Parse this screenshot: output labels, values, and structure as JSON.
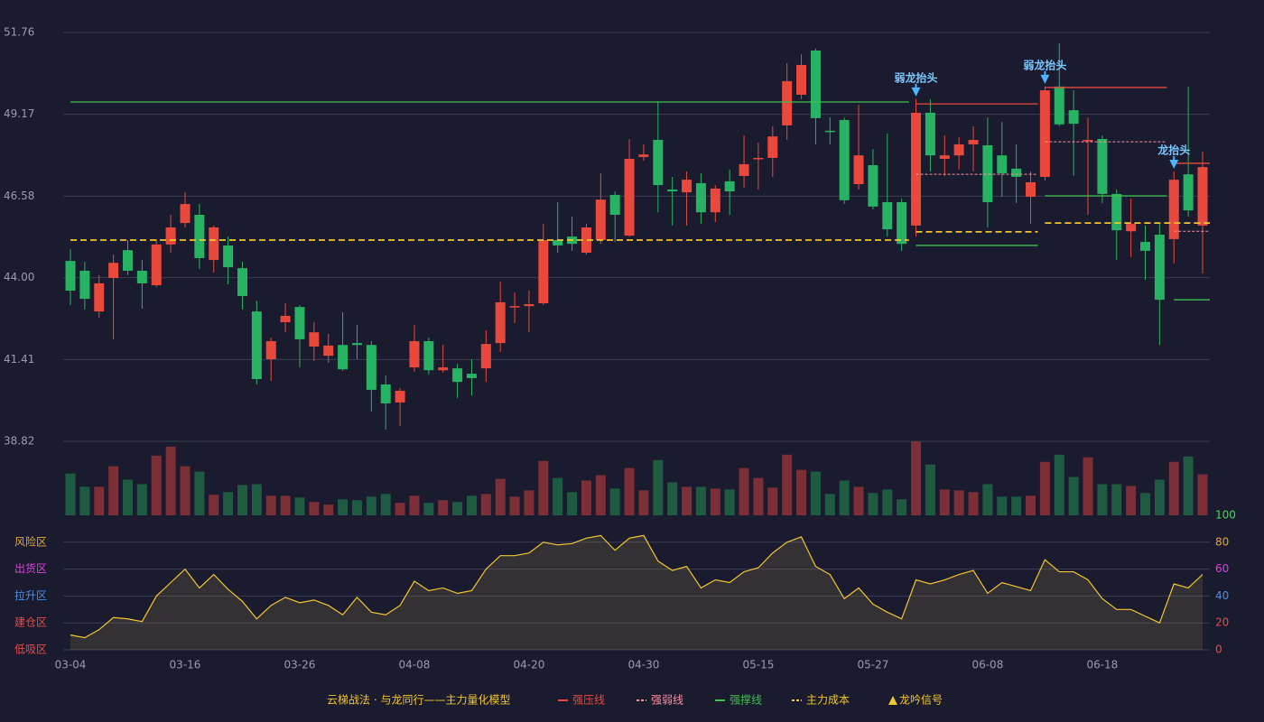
{
  "chart_data": [
    {
      "type": "candlestick",
      "open": [
        44.53,
        44.22,
        42.93,
        43.99,
        44.87,
        44.22,
        43.76,
        45.05,
        45.73,
        45.99,
        44.56,
        45.02,
        44.3,
        42.93,
        41.42,
        42.59,
        43.07,
        41.82,
        41.53,
        41.87,
        41.93,
        41.87,
        40.62,
        40.05,
        41.16,
        41.99,
        41.07,
        41.13,
        40.96,
        41.13,
        41.93,
        43.07,
        43.1,
        43.19,
        45.19,
        45.3,
        44.79,
        45.19,
        46.62,
        45.33,
        47.82,
        48.36,
        46.79,
        46.7,
        46.99,
        46.07,
        47.05,
        47.22,
        47.79,
        47.79,
        48.82,
        49.79,
        51.19,
        48.65,
        48.99,
        46.96,
        47.56,
        46.39,
        46.39,
        45.65,
        49.22,
        47.76,
        47.87,
        48.22,
        48.19,
        47.87,
        47.45,
        46.56,
        47.19,
        50.05,
        49.3,
        48.36,
        48.39,
        46.65,
        45.47,
        45.13,
        45.36,
        45.22,
        47.27,
        45.65
      ],
      "high": [
        44.9,
        44.5,
        44.08,
        44.73,
        45.19,
        44.56,
        45.22,
        45.99,
        46.7,
        46.33,
        45.65,
        45.3,
        44.5,
        43.27,
        42.1,
        43.19,
        43.13,
        42.59,
        42.22,
        42.9,
        42.5,
        41.99,
        40.9,
        40.5,
        42.5,
        42.1,
        41.87,
        41.27,
        41.42,
        42.33,
        43.87,
        43.53,
        43.59,
        45.7,
        46.39,
        45.93,
        45.7,
        47.3,
        46.73,
        48.39,
        48.22,
        49.59,
        47.19,
        47.36,
        47.3,
        46.93,
        47.42,
        48.5,
        48.27,
        48.79,
        50.79,
        51.07,
        51.25,
        49.07,
        49.07,
        49.47,
        48.07,
        48.56,
        46.5,
        49.65,
        49.65,
        48.5,
        48.45,
        48.79,
        49.07,
        48.93,
        48.22,
        47.36,
        50.05,
        51.42,
        49.93,
        49.07,
        48.5,
        46.79,
        46.5,
        45.65,
        45.7,
        47.36,
        50.05,
        47.99
      ],
      "low": [
        43.13,
        42.99,
        42.73,
        42.05,
        44.08,
        43.02,
        43.7,
        44.79,
        45.59,
        44.27,
        44.16,
        43.79,
        42.99,
        40.62,
        40.73,
        42.27,
        41.16,
        41.36,
        41.3,
        41.05,
        41.42,
        39.76,
        39.19,
        39.3,
        41.02,
        40.93,
        41.0,
        40.19,
        40.27,
        40.7,
        41.65,
        42.56,
        42.27,
        43.13,
        44.79,
        44.85,
        44.73,
        45.07,
        45.13,
        45.3,
        47.7,
        46.07,
        45.65,
        45.65,
        45.7,
        45.76,
        45.99,
        46.85,
        46.79,
        47.19,
        48.36,
        49.65,
        48.22,
        48.22,
        46.33,
        46.79,
        46.16,
        45.3,
        44.85,
        45.3,
        47.36,
        47.22,
        47.42,
        47.36,
        45.59,
        46.56,
        46.36,
        45.7,
        47.07,
        48.79,
        47.22,
        45.99,
        46.36,
        44.56,
        44.65,
        43.93,
        41.87,
        44.45,
        45.93,
        44.13
      ],
      "close": [
        43.59,
        43.33,
        43.82,
        44.47,
        44.22,
        43.82,
        45.05,
        45.59,
        46.33,
        44.62,
        45.59,
        44.33,
        43.42,
        40.79,
        41.99,
        42.79,
        42.05,
        42.27,
        41.85,
        41.1,
        41.87,
        40.45,
        40.02,
        40.42,
        41.99,
        41.07,
        41.16,
        40.7,
        40.82,
        41.9,
        43.22,
        43.1,
        43.16,
        45.19,
        45.02,
        45.07,
        45.59,
        46.47,
        45.99,
        47.76,
        47.9,
        46.93,
        46.73,
        47.1,
        46.07,
        46.82,
        46.73,
        47.59,
        47.79,
        48.47,
        50.22,
        50.73,
        49.05,
        48.62,
        46.45,
        47.87,
        46.25,
        45.53,
        45.07,
        49.22,
        47.87,
        47.87,
        48.22,
        48.36,
        46.39,
        47.3,
        47.19,
        47.02,
        49.93,
        48.85,
        48.87,
        48.36,
        46.65,
        45.5,
        45.7,
        44.85,
        43.3,
        47.1,
        46.13,
        47.5
      ],
      "up_color": "#e9493d",
      "down_color": "#27b363",
      "ylim": [
        38.82,
        51.76
      ],
      "yticks": [
        38.82,
        41.41,
        {
          "value": 44,
          "label": "44.00"
        },
        46.58,
        49.17,
        51.76
      ],
      "grid": true,
      "lines": [
        {
          "name": "强压线",
          "color": "#e9493d",
          "dash": false,
          "segments": [
            {
              "start": 59,
              "end": 67,
              "value": 49.5
            },
            {
              "start": 68,
              "end": 76,
              "value": 50.02
            },
            {
              "start": 77,
              "end": 79,
              "value": 47.62
            }
          ]
        },
        {
          "name": "强弱线",
          "color": "#ff8fa3",
          "dash": true,
          "segments": [
            {
              "start": 59,
              "end": 67,
              "value": 47.27
            },
            {
              "start": 68,
              "end": 76,
              "value": 48.3
            },
            {
              "start": 77,
              "end": 79,
              "value": 45.47
            }
          ]
        },
        {
          "name": "强撑线",
          "color": "#3fbf52",
          "dash": false,
          "segments": [
            {
              "start": 0,
              "end": 58,
              "value": 49.56
            },
            {
              "start": 59,
              "end": 67,
              "value": 45.02
            },
            {
              "start": 68,
              "end": 76,
              "value": 46.59
            },
            {
              "start": 77,
              "end": 79,
              "value": 43.3
            }
          ]
        },
        {
          "name": "主力成本",
          "color": "#f2c62e",
          "dash": true,
          "segments": [
            {
              "start": 0,
              "end": 58,
              "value": 45.19
            },
            {
              "start": 59,
              "end": 67,
              "value": 45.45
            },
            {
              "start": 68,
              "end": 79,
              "value": 45.73
            }
          ]
        }
      ],
      "signal_name": "龙吟信号",
      "signal_color": "#f2c62e",
      "signal_arrow_color": "#4fb3ff",
      "signals": [
        {
          "index": 59,
          "value": 49.65,
          "label": "弱龙抬头"
        },
        {
          "index": 68,
          "value": 50.05,
          "label": "弱龙抬头"
        },
        {
          "index": 77,
          "value": 47.36,
          "label": "龙抬头"
        }
      ]
    },
    {
      "type": "bar",
      "values": [
        47,
        32,
        32,
        55,
        40,
        35,
        67,
        77,
        55,
        49,
        23,
        26,
        34,
        35,
        22,
        22,
        20,
        15,
        12,
        18,
        17,
        21,
        24,
        14,
        22,
        14,
        17,
        15,
        22,
        24,
        41,
        21,
        28,
        61,
        42,
        26,
        39,
        45,
        30,
        53,
        28,
        62,
        37,
        32,
        32,
        30,
        29,
        53,
        42,
        31,
        68,
        51,
        49,
        24,
        39,
        32,
        25,
        29,
        18,
        83,
        57,
        29,
        28,
        26,
        35,
        21,
        21,
        22,
        60,
        68,
        43,
        65,
        35,
        35,
        33,
        25,
        40,
        60,
        66,
        46
      ],
      "up_color": "#7c2f36",
      "down_color": "#1f5b42"
    },
    {
      "type": "line",
      "name": "云梯战法 · 与龙同行——主力量化模型",
      "color": "#f2c62e",
      "categories": [
        "03-04",
        null,
        null,
        null,
        null,
        null,
        null,
        null,
        "03-16",
        null,
        null,
        null,
        null,
        null,
        null,
        null,
        "03-26",
        null,
        null,
        null,
        null,
        null,
        null,
        null,
        "04-08",
        null,
        null,
        null,
        null,
        null,
        null,
        null,
        "04-20",
        null,
        null,
        null,
        null,
        null,
        null,
        null,
        "04-30",
        null,
        null,
        null,
        null,
        null,
        null,
        null,
        "05-15",
        null,
        null,
        null,
        null,
        null,
        null,
        null,
        "05-27",
        null,
        null,
        null,
        null,
        null,
        null,
        null,
        "06-08",
        null,
        null,
        null,
        null,
        null,
        null,
        null,
        "06-18",
        null,
        null,
        null,
        null,
        null,
        null,
        null
      ],
      "values": [
        11,
        9,
        15,
        24,
        23,
        21,
        40,
        50,
        60,
        46,
        56,
        45,
        36,
        23,
        33,
        39,
        35,
        37,
        33,
        26,
        39,
        28,
        26,
        33,
        51,
        44,
        46,
        42,
        44,
        60,
        70,
        70,
        72,
        80,
        78,
        79,
        83,
        85,
        74,
        83,
        85,
        66,
        59,
        62,
        46,
        52,
        50,
        58,
        61,
        72,
        80,
        84,
        62,
        56,
        38,
        46,
        34,
        28,
        23,
        52,
        49,
        52,
        56,
        59,
        42,
        50,
        47,
        44,
        67,
        58,
        58,
        52,
        38,
        30,
        30,
        25,
        20,
        49,
        46,
        56
      ],
      "ylim": [
        0,
        100
      ],
      "yticks": [
        0,
        20,
        40,
        60,
        80,
        100
      ],
      "ytick_colors": [
        "#e84a4a",
        "#e84a4a",
        "#4a90e2",
        "#e040e0",
        "#e8a33a",
        "#3fdc5a"
      ],
      "zones": [
        {
          "value": 80,
          "label": "风险区",
          "color": "#e8a33a"
        },
        {
          "value": 60,
          "label": "出货区",
          "color": "#e040e0"
        },
        {
          "value": 40,
          "label": "拉升区",
          "color": "#4a90e2"
        },
        {
          "value": 20,
          "label": "建仓区",
          "color": "#e84a4a"
        },
        {
          "value": 0,
          "label": "低吸区",
          "color": "#e84a4a"
        }
      ]
    }
  ]
}
